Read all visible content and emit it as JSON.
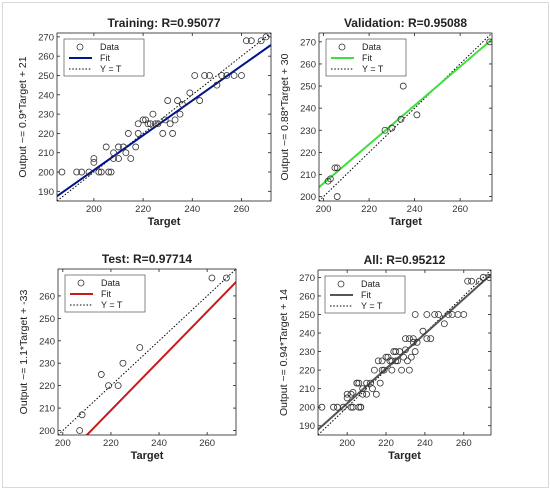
{
  "chart_data": [
    {
      "type": "scatter",
      "title": "Training: R=0.95077",
      "xlabel": "Target",
      "ylabel": "Output ~= 0.9*Target + 21",
      "xlim": [
        185,
        272
      ],
      "ylim": [
        185,
        272
      ],
      "xticks": [
        200,
        220,
        240,
        260
      ],
      "yticks": [
        190,
        200,
        210,
        220,
        230,
        240,
        250,
        260,
        270
      ],
      "fit_color": "#00158a",
      "fit": {
        "slope": 0.9,
        "intercept": 21
      },
      "legend": {
        "position": "top-left",
        "entries": [
          "Data",
          "Fit",
          "Y = T"
        ]
      },
      "points": [
        [
          187,
          200
        ],
        [
          193,
          200
        ],
        [
          195,
          200
        ],
        [
          198,
          200
        ],
        [
          200,
          207
        ],
        [
          200,
          205
        ],
        [
          202,
          200
        ],
        [
          203,
          200
        ],
        [
          205,
          213
        ],
        [
          206,
          200
        ],
        [
          207,
          200
        ],
        [
          208,
          207
        ],
        [
          208,
          210
        ],
        [
          210,
          213
        ],
        [
          210,
          207
        ],
        [
          212,
          213
        ],
        [
          213,
          210
        ],
        [
          214,
          220
        ],
        [
          215,
          207
        ],
        [
          217,
          213
        ],
        [
          218,
          220
        ],
        [
          218,
          225
        ],
        [
          220,
          227
        ],
        [
          221,
          227
        ],
        [
          222,
          225
        ],
        [
          223,
          225
        ],
        [
          224,
          230
        ],
        [
          225,
          225
        ],
        [
          226,
          225
        ],
        [
          228,
          220
        ],
        [
          229,
          227
        ],
        [
          230,
          237
        ],
        [
          231,
          225
        ],
        [
          232,
          220
        ],
        [
          233,
          227
        ],
        [
          234,
          237
        ],
        [
          235,
          230
        ],
        [
          236,
          235
        ],
        [
          239,
          241
        ],
        [
          241,
          250
        ],
        [
          243,
          237
        ],
        [
          245,
          250
        ],
        [
          247,
          250
        ],
        [
          250,
          245
        ],
        [
          252,
          250
        ],
        [
          254,
          250
        ],
        [
          257,
          250
        ],
        [
          260,
          250
        ],
        [
          262,
          268
        ],
        [
          264,
          268
        ],
        [
          268,
          268
        ],
        [
          270,
          270
        ]
      ]
    },
    {
      "type": "scatter",
      "title": "Validation: R=0.95088",
      "xlabel": "Target",
      "ylabel": "Output ~= 0.88*Target + 30",
      "xlim": [
        198,
        274
      ],
      "ylim": [
        198,
        274
      ],
      "xticks": [
        200,
        220,
        240,
        260
      ],
      "yticks": [
        200,
        210,
        220,
        230,
        240,
        250,
        260,
        270
      ],
      "fit_color": "#3ee03e",
      "fit": {
        "slope": 0.88,
        "intercept": 30
      },
      "legend": {
        "position": "top-left",
        "entries": [
          "Data",
          "Fit",
          "Y = T"
        ]
      },
      "points": [
        [
          202,
          207
        ],
        [
          203,
          208
        ],
        [
          205,
          213
        ],
        [
          206,
          213
        ],
        [
          206,
          200
        ],
        [
          227,
          230
        ],
        [
          230,
          231
        ],
        [
          234,
          235
        ],
        [
          235,
          250
        ],
        [
          241,
          237
        ],
        [
          273,
          270
        ]
      ]
    },
    {
      "type": "scatter",
      "title": "Test: R=0.97714",
      "xlabel": "Target",
      "ylabel": "Output ~= 1.1*Target + -33",
      "xlim": [
        198,
        272
      ],
      "ylim": [
        198,
        272
      ],
      "xticks": [
        200,
        220,
        240,
        260
      ],
      "yticks": [
        200,
        210,
        220,
        230,
        240,
        250,
        260
      ],
      "fit_color": "#c81c1c",
      "fit": {
        "slope": 1.1,
        "intercept": -33
      },
      "legend": {
        "position": "top-left",
        "entries": [
          "Data",
          "Fit",
          "Y = T"
        ]
      },
      "points": [
        [
          207,
          200
        ],
        [
          208,
          207
        ],
        [
          216,
          225
        ],
        [
          219,
          220
        ],
        [
          223,
          220
        ],
        [
          225,
          230
        ],
        [
          232,
          237
        ],
        [
          262,
          268
        ],
        [
          268,
          268
        ]
      ]
    },
    {
      "type": "scatter",
      "title": "All: R=0.95212",
      "xlabel": "Target",
      "ylabel": "Output ~= 0.94*Target + 14",
      "xlim": [
        185,
        274
      ],
      "ylim": [
        185,
        274
      ],
      "xticks": [
        200,
        220,
        240,
        260
      ],
      "yticks": [
        190,
        200,
        210,
        220,
        230,
        240,
        250,
        260,
        270
      ],
      "fit_color": "#555555",
      "fit": {
        "slope": 0.94,
        "intercept": 14
      },
      "legend": {
        "position": "top-left",
        "entries": [
          "Data",
          "Fit",
          "Y = T"
        ]
      },
      "points": [
        [
          187,
          200
        ],
        [
          193,
          200
        ],
        [
          195,
          200
        ],
        [
          198,
          200
        ],
        [
          200,
          207
        ],
        [
          200,
          205
        ],
        [
          202,
          200
        ],
        [
          203,
          200
        ],
        [
          205,
          213
        ],
        [
          206,
          200
        ],
        [
          207,
          200
        ],
        [
          208,
          207
        ],
        [
          208,
          210
        ],
        [
          210,
          213
        ],
        [
          210,
          207
        ],
        [
          212,
          213
        ],
        [
          213,
          210
        ],
        [
          214,
          220
        ],
        [
          215,
          207
        ],
        [
          217,
          213
        ],
        [
          218,
          220
        ],
        [
          218,
          225
        ],
        [
          220,
          227
        ],
        [
          221,
          227
        ],
        [
          222,
          225
        ],
        [
          223,
          225
        ],
        [
          224,
          230
        ],
        [
          225,
          225
        ],
        [
          226,
          225
        ],
        [
          228,
          220
        ],
        [
          229,
          227
        ],
        [
          230,
          237
        ],
        [
          231,
          225
        ],
        [
          232,
          220
        ],
        [
          233,
          227
        ],
        [
          234,
          237
        ],
        [
          235,
          230
        ],
        [
          236,
          235
        ],
        [
          239,
          241
        ],
        [
          241,
          250
        ],
        [
          243,
          237
        ],
        [
          245,
          250
        ],
        [
          247,
          250
        ],
        [
          250,
          245
        ],
        [
          252,
          250
        ],
        [
          254,
          250
        ],
        [
          257,
          250
        ],
        [
          260,
          250
        ],
        [
          262,
          268
        ],
        [
          264,
          268
        ],
        [
          268,
          268
        ],
        [
          270,
          270
        ],
        [
          202,
          207
        ],
        [
          203,
          208
        ],
        [
          205,
          213
        ],
        [
          206,
          213
        ],
        [
          227,
          230
        ],
        [
          230,
          231
        ],
        [
          234,
          235
        ],
        [
          235,
          250
        ],
        [
          241,
          237
        ],
        [
          273,
          270
        ],
        [
          207,
          200
        ],
        [
          216,
          225
        ],
        [
          219,
          220
        ],
        [
          223,
          220
        ],
        [
          225,
          230
        ],
        [
          232,
          237
        ]
      ]
    }
  ]
}
